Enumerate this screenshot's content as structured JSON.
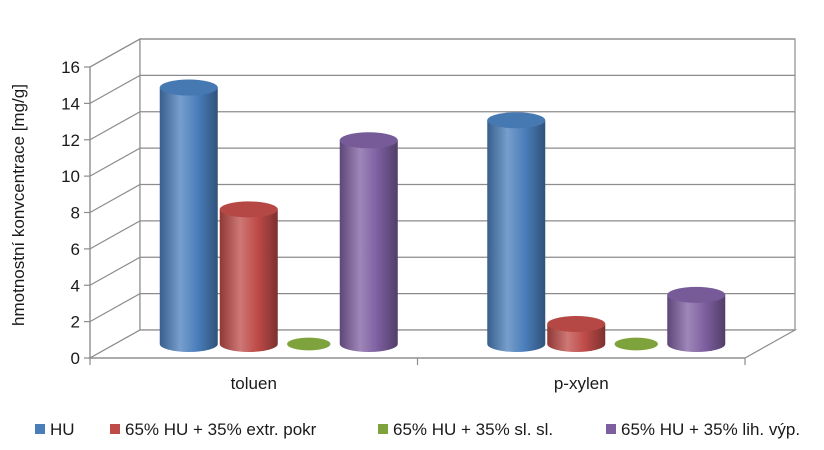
{
  "chart_data": {
    "type": "bar",
    "style": "3d-cylinder",
    "categories": [
      "toluen",
      "p-xylen"
    ],
    "series": [
      {
        "name": "HU",
        "values": [
          14.1,
          12.3
        ],
        "color": "#4a7ebb"
      },
      {
        "name": "65% HU + 35% extr. pokr",
        "values": [
          7.4,
          1.1
        ],
        "color": "#be4b48"
      },
      {
        "name": "65% HU + 35% sl. sl.",
        "values": [
          0.0,
          0.0
        ],
        "color": "#7fa33c"
      },
      {
        "name": "65% HU + 35% lih. výp.",
        "values": [
          11.2,
          2.7
        ],
        "color": "#7d5fa0"
      }
    ],
    "ylabel": "hmotnostní konvcentrace [mg/g]",
    "xlabel": "",
    "title": "",
    "ylim": [
      0,
      16
    ],
    "yticks": [
      0,
      2,
      4,
      6,
      8,
      10,
      12,
      14,
      16
    ],
    "grid": true,
    "legend_position": "bottom"
  }
}
